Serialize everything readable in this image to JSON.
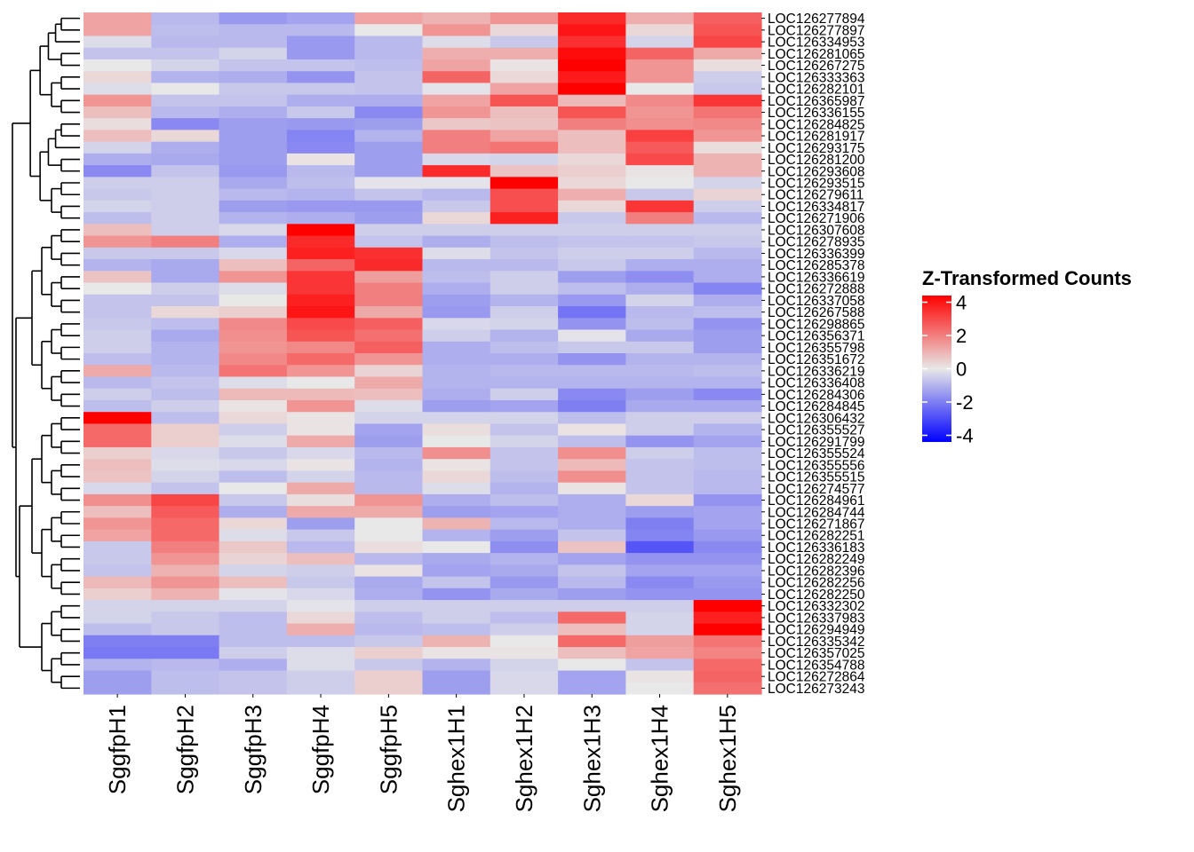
{
  "chart_data": {
    "type": "heatmap",
    "title": "",
    "xlabel": "",
    "ylabel": "",
    "columns": [
      "SggfpH1",
      "SggfpH2",
      "SggfpH3",
      "SggfpH4",
      "SggfpH5",
      "Sghex1H1",
      "Sghex1H2",
      "Sghex1H3",
      "Sghex1H4",
      "Sghex1H5"
    ],
    "rows": [
      "LOC126277894",
      "LOC126277897",
      "LOC126334953",
      "LOC126281065",
      "LOC126267275",
      "LOC126333363",
      "LOC126282101",
      "LOC126365987",
      "LOC126336155",
      "LOC126284825",
      "LOC126281917",
      "LOC126293175",
      "LOC126281200",
      "LOC126293608",
      "LOC126293515",
      "LOC126279611",
      "LOC126334817",
      "LOC126271906",
      "LOC126307608",
      "LOC126278935",
      "LOC126336399",
      "LOC126285378",
      "LOC126336619",
      "LOC126272888",
      "LOC126337058",
      "LOC126267588",
      "LOC126298865",
      "LOC126356371",
      "LOC126355798",
      "LOC126351672",
      "LOC126336219",
      "LOC126336408",
      "LOC126284306",
      "LOC126284845",
      "LOC126306432",
      "LOC126355527",
      "LOC126291799",
      "LOC126355524",
      "LOC126355556",
      "LOC126355515",
      "LOC126274577",
      "LOC126284961",
      "LOC126284744",
      "LOC126271867",
      "LOC126282251",
      "LOC126336183",
      "LOC126282249",
      "LOC126282396",
      "LOC126282256",
      "LOC126282250",
      "LOC126332302",
      "LOC126337983",
      "LOC126294949",
      "LOC126335342",
      "LOC126357025",
      "LOC126354788",
      "LOC126272864",
      "LOC126273243"
    ],
    "values": [
      [
        1.3,
        -0.9,
        -1.5,
        -1.3,
        1.3,
        1.0,
        1.6,
        3.6,
        1.1,
        2.6
      ],
      [
        1.3,
        -0.8,
        -0.9,
        -0.9,
        0.0,
        1.6,
        0.3,
        4.0,
        0.3,
        2.8
      ],
      [
        -0.2,
        -0.9,
        -0.9,
        -1.5,
        -0.9,
        -0.2,
        -0.6,
        3.5,
        -0.4,
        3.1
      ],
      [
        -0.7,
        -0.7,
        -0.4,
        -1.5,
        -0.9,
        1.1,
        1.1,
        4.2,
        2.5,
        1.2
      ],
      [
        0.0,
        -0.4,
        -0.7,
        -0.7,
        -0.8,
        1.3,
        0.1,
        4.4,
        1.6,
        0.2
      ],
      [
        0.3,
        -1.0,
        -1.1,
        -1.6,
        -0.7,
        2.5,
        0.3,
        3.9,
        1.6,
        -0.5
      ],
      [
        -0.2,
        0.0,
        -0.6,
        -0.6,
        -0.7,
        -0.1,
        1.3,
        4.4,
        0.0,
        -0.6
      ],
      [
        1.6,
        -0.7,
        -0.7,
        -1.1,
        -1.1,
        1.3,
        2.8,
        0.9,
        1.8,
        3.4
      ],
      [
        0.8,
        -0.9,
        -1.1,
        -0.6,
        -1.8,
        1.6,
        0.8,
        2.8,
        1.6,
        2.2
      ],
      [
        0.2,
        -1.8,
        -1.4,
        -1.5,
        -1.4,
        0.6,
        0.7,
        2.0,
        1.7,
        1.8
      ],
      [
        0.8,
        0.3,
        -1.4,
        -1.9,
        -1.0,
        2.0,
        1.3,
        0.8,
        3.2,
        1.6
      ],
      [
        -0.4,
        -1.1,
        -1.4,
        -1.8,
        -1.4,
        2.0,
        2.2,
        0.8,
        2.7,
        0.2
      ],
      [
        -1.1,
        -1.2,
        -1.4,
        0.1,
        -1.4,
        -0.3,
        -0.4,
        0.3,
        3.0,
        1.0
      ],
      [
        -1.8,
        -0.7,
        -1.5,
        -0.9,
        -1.4,
        3.6,
        0.7,
        0.5,
        0.1,
        1.0
      ],
      [
        -0.5,
        -0.5,
        -1.2,
        -0.8,
        -0.1,
        -0.1,
        4.4,
        0.3,
        0.0,
        -0.4
      ],
      [
        -0.6,
        -0.5,
        -0.9,
        -1.0,
        -0.7,
        -0.9,
        2.9,
        1.1,
        -0.6,
        0.4
      ],
      [
        -0.4,
        -0.5,
        -1.4,
        -1.5,
        -1.5,
        -0.6,
        2.9,
        0.3,
        3.4,
        -0.5
      ],
      [
        -0.8,
        -0.5,
        -1.0,
        -1.1,
        -1.4,
        0.3,
        3.8,
        -0.6,
        2.0,
        -0.9
      ],
      [
        0.8,
        -0.5,
        -0.3,
        4.4,
        -0.5,
        -0.5,
        -0.5,
        -0.5,
        -0.5,
        -0.5
      ],
      [
        1.6,
        2.0,
        -1.1,
        3.6,
        -0.7,
        -1.1,
        -0.8,
        -0.7,
        -0.7,
        -0.6
      ],
      [
        -0.6,
        -0.6,
        -0.3,
        3.8,
        3.5,
        -0.2,
        -0.7,
        -0.5,
        -0.5,
        -0.9
      ],
      [
        -1.0,
        -1.2,
        0.8,
        2.5,
        3.6,
        -0.9,
        -0.9,
        -0.6,
        -1.1,
        -1.1
      ],
      [
        0.7,
        -1.2,
        1.6,
        3.4,
        1.4,
        -0.8,
        -0.5,
        -1.4,
        -1.7,
        -1.1
      ],
      [
        0.0,
        -0.5,
        -0.2,
        3.4,
        2.0,
        -1.1,
        -0.5,
        -0.8,
        -1.1,
        -1.9
      ],
      [
        -0.7,
        -0.7,
        0.0,
        3.8,
        2.0,
        -1.4,
        -1.0,
        -1.5,
        -0.4,
        -1.1
      ],
      [
        -0.7,
        0.3,
        0.5,
        4.0,
        1.2,
        -1.5,
        -0.5,
        -2.2,
        -0.9,
        -0.8
      ],
      [
        -0.6,
        -0.8,
        1.8,
        3.0,
        2.6,
        -0.3,
        -0.4,
        -1.6,
        -0.8,
        -1.6
      ],
      [
        -0.5,
        -1.2,
        1.7,
        2.8,
        2.3,
        -0.5,
        -1.0,
        -0.1,
        -1.2,
        -1.4
      ],
      [
        -0.5,
        -1.0,
        1.6,
        1.8,
        2.6,
        -1.1,
        -0.8,
        -0.6,
        -0.6,
        -1.4
      ],
      [
        -0.8,
        -1.0,
        1.8,
        2.4,
        1.6,
        -1.1,
        -1.1,
        -1.6,
        -1.0,
        -1.0
      ],
      [
        1.2,
        -0.9,
        2.2,
        1.6,
        0.4,
        -1.0,
        -0.9,
        -0.9,
        -0.9,
        -0.8
      ],
      [
        -0.9,
        -0.7,
        -0.2,
        0.0,
        1.2,
        -1.0,
        -1.0,
        -1.0,
        -1.0,
        -1.0
      ],
      [
        -0.5,
        -0.8,
        0.9,
        0.9,
        0.8,
        -1.1,
        -0.5,
        -1.8,
        -1.4,
        -1.8
      ],
      [
        -0.8,
        -0.5,
        0.1,
        1.6,
        -0.2,
        -1.4,
        -1.3,
        -2.0,
        -1.2,
        -1.2
      ],
      [
        4.4,
        -0.8,
        0.3,
        0.1,
        -0.4,
        -0.4,
        -0.4,
        -0.8,
        -0.5,
        -0.5
      ],
      [
        2.4,
        0.5,
        -0.5,
        0.1,
        -1.3,
        0.2,
        -0.7,
        0.1,
        -0.5,
        -1.0
      ],
      [
        2.4,
        0.5,
        -0.2,
        1.2,
        -1.4,
        0.0,
        -0.4,
        -0.8,
        -1.6,
        -1.3
      ],
      [
        0.5,
        -0.3,
        -0.6,
        -0.3,
        -0.9,
        1.7,
        -0.7,
        1.7,
        -0.5,
        -0.8
      ],
      [
        0.8,
        -0.2,
        -0.3,
        0.1,
        -1.0,
        0.1,
        -0.7,
        0.9,
        -0.7,
        -0.8
      ],
      [
        0.7,
        -0.4,
        -0.8,
        -0.4,
        -0.9,
        0.3,
        -0.8,
        1.7,
        -0.7,
        -0.9
      ],
      [
        -0.3,
        -0.7,
        0.0,
        1.2,
        -0.9,
        -0.2,
        -1.0,
        0.1,
        -0.7,
        -0.9
      ],
      [
        1.7,
        3.1,
        -0.6,
        0.2,
        1.6,
        -1.1,
        -0.8,
        -1.1,
        0.3,
        -1.6
      ],
      [
        0.8,
        2.7,
        -1.1,
        1.2,
        1.2,
        -1.4,
        -1.3,
        -1.1,
        -1.4,
        -1.3
      ],
      [
        1.6,
        2.4,
        0.3,
        -1.4,
        0.0,
        1.0,
        -0.9,
        -1.1,
        -2.0,
        -1.3
      ],
      [
        1.3,
        2.4,
        -0.2,
        -0.6,
        0.0,
        -1.0,
        -1.4,
        -0.7,
        -1.9,
        -1.5
      ],
      [
        -0.6,
        2.0,
        0.6,
        -0.9,
        0.2,
        0.0,
        -1.7,
        0.7,
        -2.8,
        -1.8
      ],
      [
        -0.6,
        1.6,
        0.4,
        0.8,
        -0.9,
        -1.2,
        -1.0,
        -1.3,
        -1.6,
        -1.6
      ],
      [
        -0.7,
        1.0,
        -0.4,
        -0.5,
        0.1,
        -1.3,
        -1.2,
        -0.7,
        -1.3,
        -1.3
      ],
      [
        0.9,
        1.6,
        0.8,
        -0.6,
        -1.2,
        -0.7,
        -1.5,
        -0.9,
        -1.8,
        -1.5
      ],
      [
        0.5,
        1.0,
        -0.1,
        -0.3,
        -1.1,
        -1.6,
        -1.2,
        -1.4,
        -1.6,
        -1.6
      ],
      [
        -0.4,
        -0.4,
        -0.4,
        -0.1,
        -0.5,
        -0.5,
        -0.5,
        -0.5,
        -0.5,
        4.4
      ],
      [
        -0.4,
        -0.6,
        -0.8,
        0.3,
        -0.8,
        -0.5,
        -0.8,
        2.4,
        -0.4,
        3.8
      ],
      [
        -0.8,
        -0.6,
        -0.8,
        1.1,
        -0.9,
        -0.8,
        -0.5,
        0.8,
        -0.4,
        4.4
      ],
      [
        -2.0,
        -2.0,
        -0.8,
        -0.8,
        -0.6,
        1.0,
        0.0,
        2.4,
        1.4,
        2.2
      ],
      [
        -2.1,
        -2.1,
        -0.5,
        -0.2,
        0.5,
        0.1,
        0.1,
        0.8,
        1.3,
        1.9
      ],
      [
        -1.0,
        -0.9,
        -1.1,
        -0.2,
        -0.6,
        -1.0,
        -0.4,
        0.0,
        -0.7,
        2.4
      ],
      [
        -1.4,
        -0.8,
        -0.7,
        -0.5,
        0.5,
        -1.4,
        -0.3,
        -1.3,
        0.1,
        2.5
      ],
      [
        -1.4,
        -0.8,
        -0.7,
        -0.5,
        0.5,
        -1.4,
        -0.3,
        -1.3,
        0.0,
        2.3
      ]
    ],
    "color_scale": {
      "title": "Z-Transformed Counts",
      "min": -4.4,
      "max": 4.4,
      "low_color": "#0000ff",
      "mid_color": "#e8e8e8",
      "high_color": "#ff0000",
      "ticks": [
        4,
        2,
        0,
        -2,
        -4
      ]
    },
    "legend_position": "right",
    "row_dendrogram": true,
    "row_dendrogram_position": "left"
  }
}
